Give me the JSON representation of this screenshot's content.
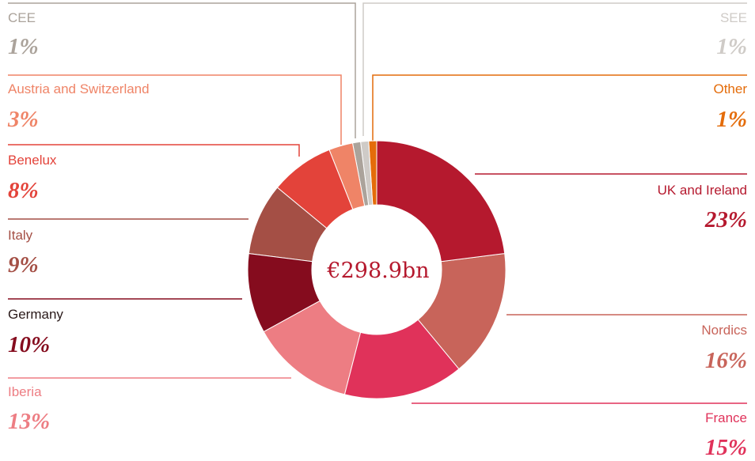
{
  "chart_data": {
    "type": "donut",
    "center_label": "€298.9bn",
    "categories": [
      "UK and Ireland",
      "Nordics",
      "France",
      "Iberia",
      "Germany",
      "Italy",
      "Benelux",
      "Austria and Switzerland",
      "CEE",
      "SEE",
      "Other"
    ],
    "values": [
      23,
      16,
      15,
      13,
      10,
      9,
      8,
      3,
      1,
      1,
      1
    ],
    "value_labels": [
      "23%",
      "16%",
      "15%",
      "13%",
      "10%",
      "9%",
      "8%",
      "3%",
      "1%",
      "1%",
      "1%"
    ],
    "colors": [
      "#b5192e",
      "#c8645a",
      "#e0325a",
      "#ed7d83",
      "#850c1e",
      "#a44f45",
      "#e3433a",
      "#ef8467",
      "#aba39b",
      "#cfcbc7",
      "#e46c0a"
    ]
  }
}
